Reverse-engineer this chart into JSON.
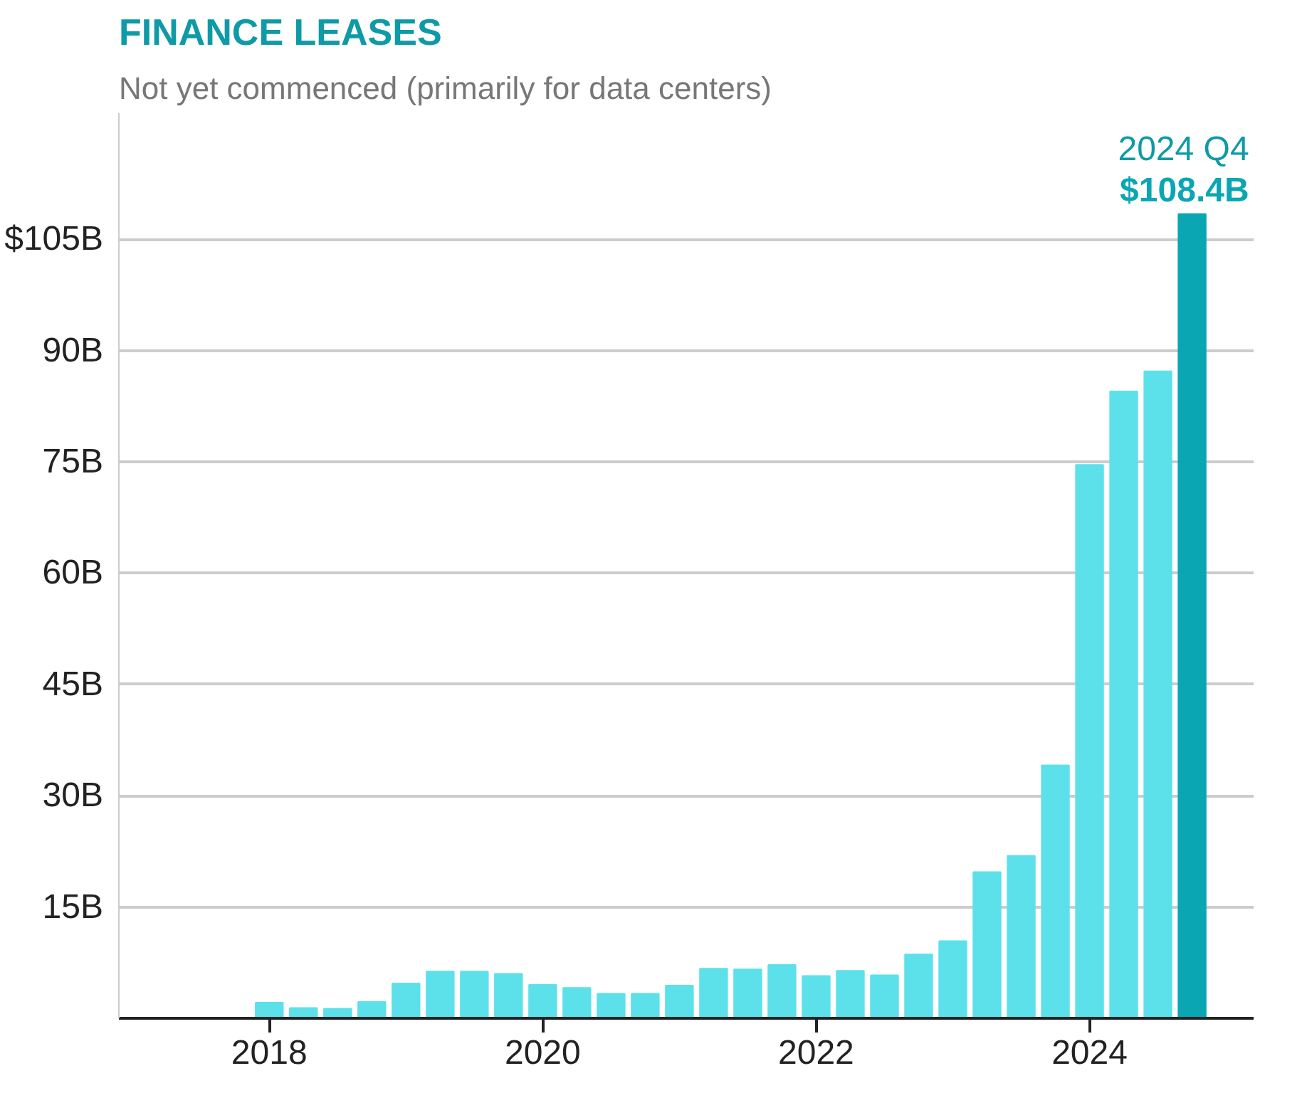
{
  "chart_data": {
    "type": "bar",
    "title": "FINANCE LEASES",
    "subtitle": "Not yet commenced (primarily for data centers)",
    "x": [
      2018,
      2018.25,
      2018.5,
      2018.75,
      2019,
      2019.25,
      2019.5,
      2019.75,
      2020,
      2020.25,
      2020.5,
      2020.75,
      2021,
      2021.25,
      2021.5,
      2021.75,
      2022,
      2022.25,
      2022.5,
      2022.75,
      2023,
      2023.25,
      2023.5,
      2023.75,
      2024,
      2024.25,
      2024.5,
      2024.75
    ],
    "values": [
      2.1,
      1.4,
      1.3,
      2.2,
      4.7,
      6.3,
      6.3,
      6.0,
      4.5,
      4.1,
      3.3,
      3.3,
      4.4,
      6.7,
      6.6,
      7.2,
      5.7,
      6.4,
      5.8,
      8.6,
      10.4,
      19.7,
      21.9,
      34.1,
      74.6,
      84.5,
      87.2,
      108.4
    ],
    "colors": [
      "#5ce1eb",
      "#5ce1eb",
      "#5ce1eb",
      "#5ce1eb",
      "#5ce1eb",
      "#5ce1eb",
      "#5ce1eb",
      "#5ce1eb",
      "#5ce1eb",
      "#5ce1eb",
      "#5ce1eb",
      "#5ce1eb",
      "#5ce1eb",
      "#5ce1eb",
      "#5ce1eb",
      "#5ce1eb",
      "#5ce1eb",
      "#5ce1eb",
      "#5ce1eb",
      "#5ce1eb",
      "#5ce1eb",
      "#5ce1eb",
      "#5ce1eb",
      "#5ce1eb",
      "#5ce1eb",
      "#5ce1eb",
      "#5ce1eb",
      "#0ba6b4"
    ],
    "value_labels": [
      null,
      null,
      null,
      null,
      null,
      null,
      null,
      null,
      null,
      null,
      null,
      null,
      null,
      null,
      null,
      null,
      null,
      null,
      null,
      null,
      null,
      null,
      null,
      null,
      null,
      null,
      null,
      "$108.4B"
    ],
    "annotations": [
      {
        "text": "2024 Q4",
        "x": 2024.75,
        "y": 108.4
      }
    ],
    "xlim": [
      2016.9,
      2025.2
    ],
    "xticks": [
      2018,
      2020,
      2022,
      2024
    ],
    "ylim": [
      0,
      122
    ],
    "yticks": [
      {
        "value": 15,
        "label": "15B"
      },
      {
        "value": 30,
        "label": "30B"
      },
      {
        "value": 45,
        "label": "45B"
      },
      {
        "value": 60,
        "label": "60B"
      },
      {
        "value": 75,
        "label": "75B"
      },
      {
        "value": 90,
        "label": "90B"
      },
      {
        "value": 105,
        "label": "$105B"
      }
    ],
    "grid": "y"
  }
}
